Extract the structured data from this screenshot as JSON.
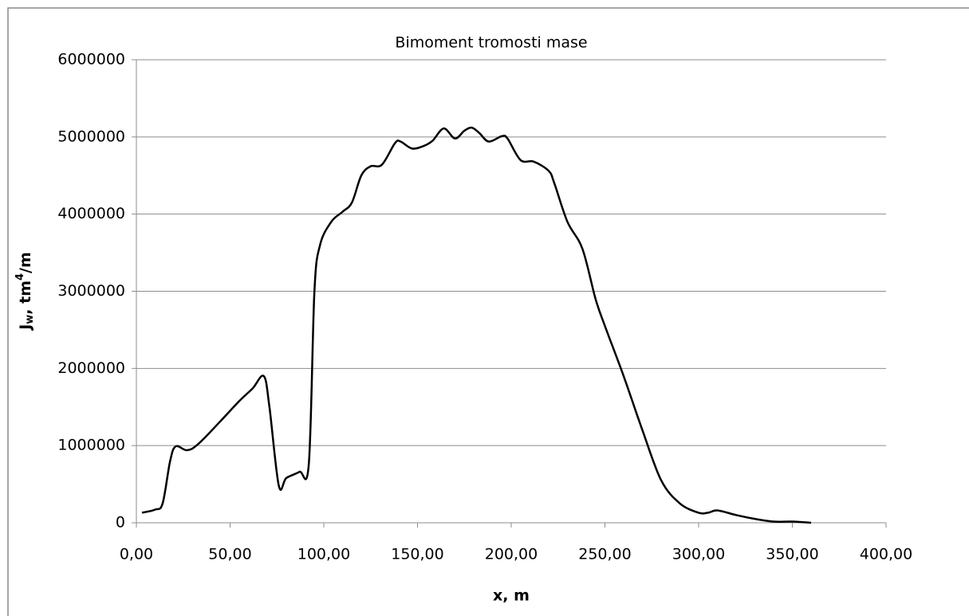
{
  "chart_data": {
    "type": "line",
    "title": "Bimoment tromosti mase",
    "xlabel": "x, m",
    "ylabel": {
      "main": "J",
      "sub": "w",
      "mid": ", tm",
      "sup": "4",
      "end": "/m"
    },
    "series": [
      {
        "color": "#000000",
        "x": [
          3,
          10,
          14,
          18,
          21,
          27,
          33,
          45,
          55,
          62,
          68,
          71,
          76,
          80,
          87,
          92,
          95,
          98,
          104,
          110,
          115,
          120,
          125,
          131,
          138,
          141,
          147,
          153,
          158,
          164,
          170,
          175,
          179,
          183,
          188,
          195,
          198,
          205,
          212,
          220,
          223,
          230,
          238,
          245,
          250,
          260,
          270,
          280,
          290,
          300,
          305,
          310,
          320,
          330,
          340,
          350,
          360
        ],
        "values": [
          130000,
          170000,
          250000,
          800000,
          990000,
          940000,
          1020000,
          1320000,
          1580000,
          1740000,
          1900000,
          1500000,
          480000,
          580000,
          660000,
          760000,
          3000000,
          3600000,
          3900000,
          4030000,
          4150000,
          4500000,
          4620000,
          4640000,
          4920000,
          4940000,
          4850000,
          4880000,
          4950000,
          5110000,
          4980000,
          5080000,
          5120000,
          5050000,
          4940000,
          5010000,
          4980000,
          4700000,
          4680000,
          4560000,
          4400000,
          3900000,
          3550000,
          2900000,
          2550000,
          1900000,
          1200000,
          550000,
          250000,
          130000,
          130000,
          160000,
          100000,
          50000,
          15000,
          15000,
          0
        ]
      }
    ],
    "xlim": [
      0,
      400
    ],
    "xticks": [
      {
        "value": 0,
        "label": "0,00"
      },
      {
        "value": 50,
        "label": "50,00"
      },
      {
        "value": 100,
        "label": "100,00"
      },
      {
        "value": 150,
        "label": "150,00"
      },
      {
        "value": 200,
        "label": "200,00"
      },
      {
        "value": 250,
        "label": "250,00"
      },
      {
        "value": 300,
        "label": "300,00"
      },
      {
        "value": 350,
        "label": "350,00"
      },
      {
        "value": 400,
        "label": "400,00"
      }
    ],
    "ylim": [
      0,
      6000000
    ],
    "yticks": [
      0,
      1000000,
      2000000,
      3000000,
      4000000,
      5000000,
      6000000
    ],
    "grid": true
  }
}
